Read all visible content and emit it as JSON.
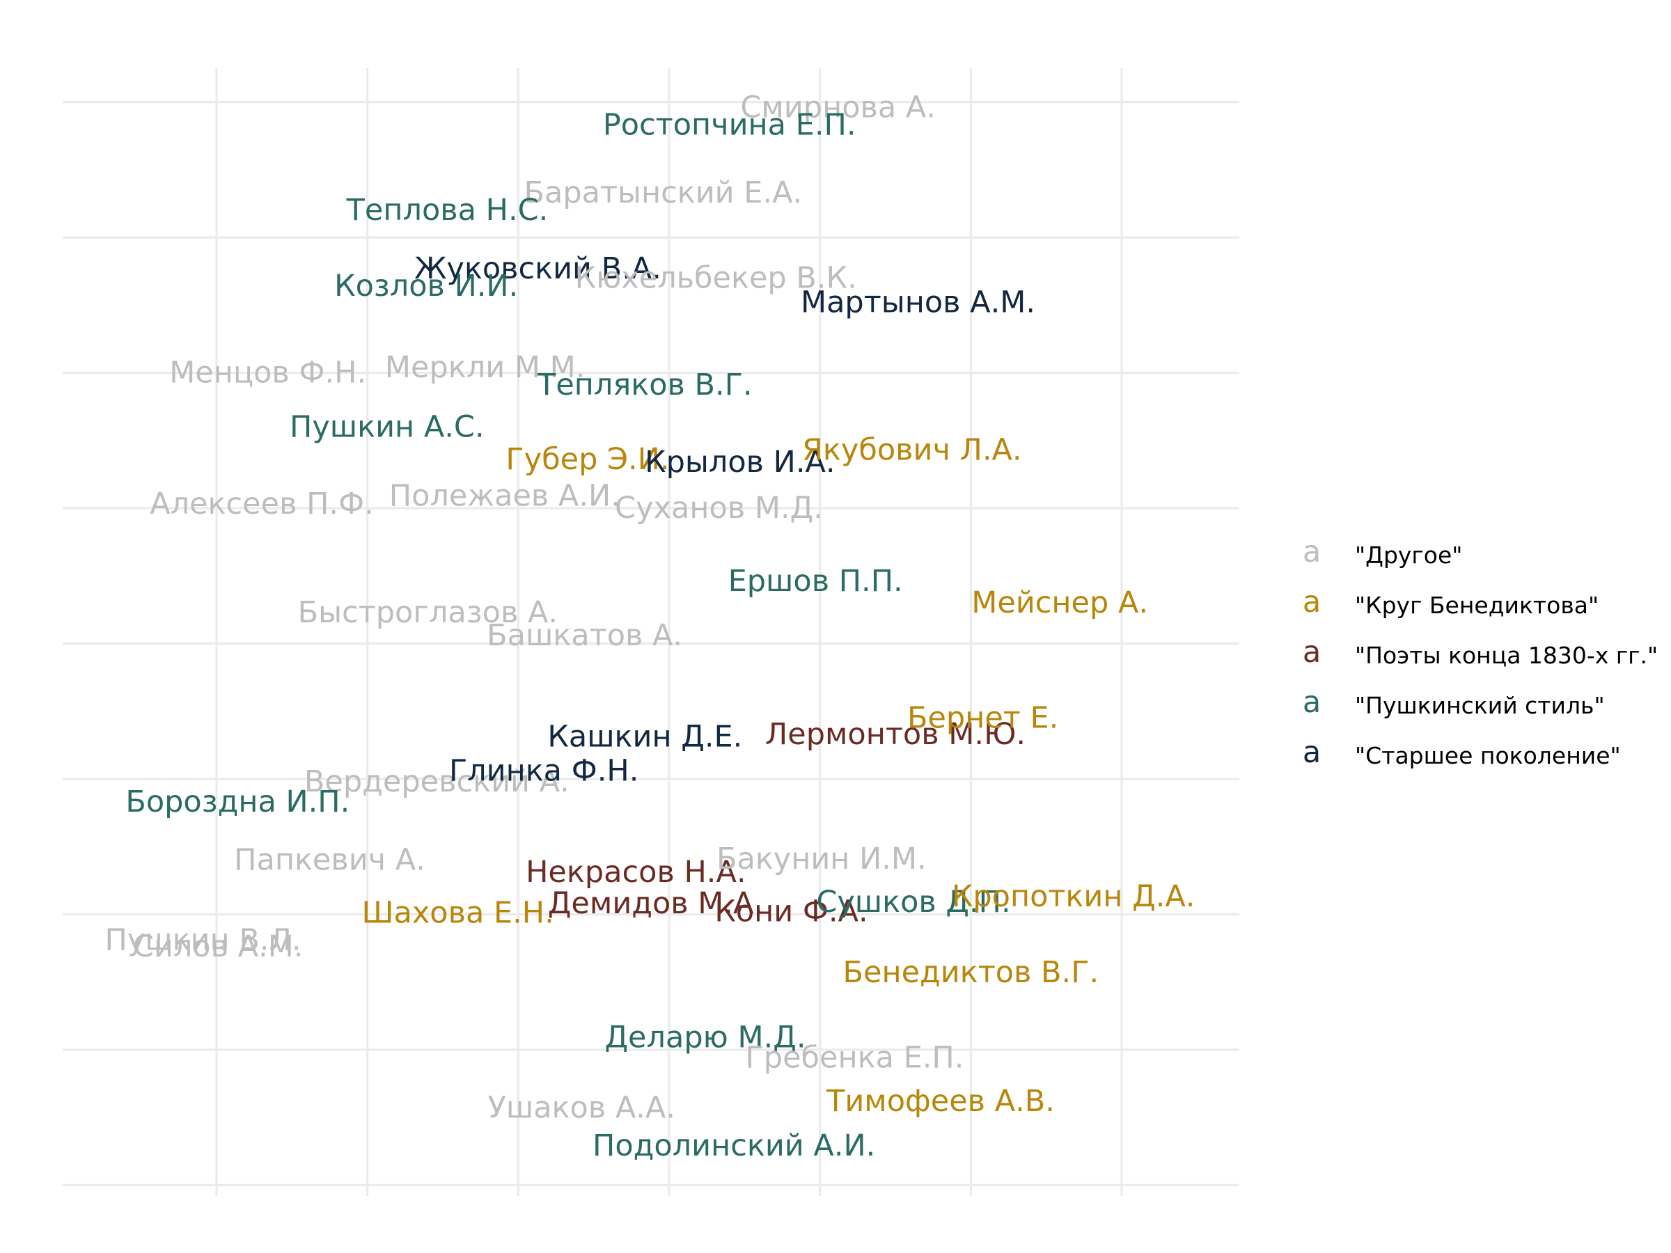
{
  "chart_data": {
    "type": "scatter",
    "title": "",
    "xlabel": "",
    "ylabel": "",
    "xlim": [
      -1.02,
      6.78
    ],
    "ylim": [
      -0.08,
      8.25
    ],
    "grid": true,
    "legend_position": "right",
    "groups": [
      {
        "name": "\"Другое\"",
        "color": "#bdbdbd"
      },
      {
        "name": "\"Круг Бенедиктова\"",
        "color": "#b8860b"
      },
      {
        "name": "\"Поэты конца 1830-х гг.\"",
        "color": "#6b2b24"
      },
      {
        "name": "\"Пушкинский стиль\"",
        "color": "#2a6b63"
      },
      {
        "name": "\"Старшее поколение\"",
        "color": "#112840"
      }
    ],
    "points": [
      {
        "label": "Смирнова А.",
        "x": 4.12,
        "y": 7.96,
        "group": 0
      },
      {
        "label": "Ростопчина Е.П.",
        "x": 3.4,
        "y": 7.83,
        "group": 3
      },
      {
        "label": "Баратынский Е.А.",
        "x": 2.96,
        "y": 7.33,
        "group": 0
      },
      {
        "label": "Теплова Н.С.",
        "x": 1.53,
        "y": 7.2,
        "group": 3
      },
      {
        "label": "Жуковский В.А.",
        "x": 2.13,
        "y": 6.77,
        "group": 4
      },
      {
        "label": "Кюхельбекер В.К.",
        "x": 3.31,
        "y": 6.7,
        "group": 0
      },
      {
        "label": "Козлов И.И.",
        "x": 1.39,
        "y": 6.64,
        "group": 3
      },
      {
        "label": "Мартынов А.М.",
        "x": 4.65,
        "y": 6.52,
        "group": 4
      },
      {
        "label": "Менцов Ф.Н.",
        "x": 0.34,
        "y": 6.0,
        "group": 0
      },
      {
        "label": "Меркли М.М.",
        "x": 1.78,
        "y": 6.04,
        "group": 0
      },
      {
        "label": "Тепляков В.Г.",
        "x": 2.84,
        "y": 5.91,
        "group": 3
      },
      {
        "label": "Пушкин А.С.",
        "x": 1.13,
        "y": 5.6,
        "group": 3
      },
      {
        "label": "Губер Э.И.",
        "x": 2.46,
        "y": 5.36,
        "group": 1
      },
      {
        "label": "Крылов И.А.",
        "x": 3.47,
        "y": 5.34,
        "group": 4
      },
      {
        "label": "Якубович Л.А.",
        "x": 4.61,
        "y": 5.43,
        "group": 1
      },
      {
        "label": "Алексеев П.Ф.",
        "x": 0.3,
        "y": 5.03,
        "group": 0
      },
      {
        "label": "Полежаев А.И.",
        "x": 1.91,
        "y": 5.09,
        "group": 0
      },
      {
        "label": "Суханов М.Д.",
        "x": 3.33,
        "y": 5.0,
        "group": 0
      },
      {
        "label": "Ершов П.П.",
        "x": 3.97,
        "y": 4.46,
        "group": 3
      },
      {
        "label": "Мейснер А.",
        "x": 5.59,
        "y": 4.3,
        "group": 1
      },
      {
        "label": "Быстроглазов А.",
        "x": 1.4,
        "y": 4.23,
        "group": 0
      },
      {
        "label": "Башкатов А.",
        "x": 2.44,
        "y": 4.06,
        "group": 0
      },
      {
        "label": "Кашкин Д.Е.",
        "x": 2.84,
        "y": 3.31,
        "group": 4
      },
      {
        "label": "Лермонтов М.Ю.",
        "x": 4.5,
        "y": 3.33,
        "group": 2
      },
      {
        "label": "Бернет Е.",
        "x": 5.08,
        "y": 3.45,
        "group": 1
      },
      {
        "label": "Вердеревский А.",
        "x": 1.46,
        "y": 2.98,
        "group": 0
      },
      {
        "label": "Глинка Ф.Н.",
        "x": 2.17,
        "y": 3.06,
        "group": 4
      },
      {
        "label": "Бороздна И.П.",
        "x": 0.14,
        "y": 2.83,
        "group": 3
      },
      {
        "label": "Папкевич А.",
        "x": 0.75,
        "y": 2.4,
        "group": 0
      },
      {
        "label": "Некрасов Н.А.",
        "x": 2.78,
        "y": 2.31,
        "group": 2
      },
      {
        "label": "Бакунин И.М.",
        "x": 4.01,
        "y": 2.41,
        "group": 0
      },
      {
        "label": "Шахова Е.Н.",
        "x": 1.6,
        "y": 2.01,
        "group": 1
      },
      {
        "label": "Демидов М.А.",
        "x": 2.91,
        "y": 2.08,
        "group": 2
      },
      {
        "label": "Кони Ф.А.",
        "x": 3.81,
        "y": 2.02,
        "group": 2
      },
      {
        "label": "Сушков Д.П.",
        "x": 4.62,
        "y": 2.09,
        "group": 3
      },
      {
        "label": "Кропоткин Д.А.",
        "x": 5.68,
        "y": 2.13,
        "group": 1
      },
      {
        "label": "Пушкин В.Л.",
        "x": -0.09,
        "y": 1.81,
        "group": 0
      },
      {
        "label": "Силов А.М.",
        "x": 0.01,
        "y": 1.76,
        "group": 0
      },
      {
        "label": "Бенедиктов В.Г.",
        "x": 5.0,
        "y": 1.57,
        "group": 1
      },
      {
        "label": "Деларю М.Д.",
        "x": 3.24,
        "y": 1.09,
        "group": 3
      },
      {
        "label": "Гребенка Е.П.",
        "x": 4.23,
        "y": 0.94,
        "group": 0
      },
      {
        "label": "Ушаков А.А.",
        "x": 2.42,
        "y": 0.57,
        "group": 0
      },
      {
        "label": "Тимофеев А.В.",
        "x": 4.8,
        "y": 0.62,
        "group": 1
      },
      {
        "label": "Подолинский А.И.",
        "x": 3.43,
        "y": 0.29,
        "group": 3
      }
    ]
  },
  "legend": {
    "key_glyph": "a",
    "items": [
      {
        "label": "\"Другое\"",
        "color": "#bdbdbd"
      },
      {
        "label": "\"Круг Бенедиктова\"",
        "color": "#b8860b"
      },
      {
        "label": "\"Поэты конца 1830-х гг.\"",
        "color": "#6b2b24"
      },
      {
        "label": "\"Пушкинский стиль\"",
        "color": "#2a6b63"
      },
      {
        "label": "\"Старшее поколение\"",
        "color": "#112840"
      }
    ]
  }
}
